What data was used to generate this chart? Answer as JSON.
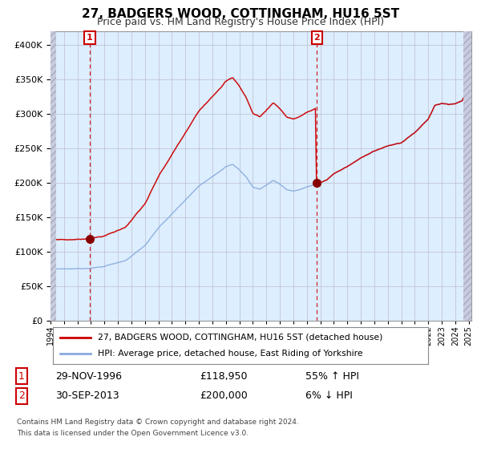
{
  "title": "27, BADGERS WOOD, COTTINGHAM, HU16 5ST",
  "subtitle": "Price paid vs. HM Land Registry's House Price Index (HPI)",
  "sale1_date": "29-NOV-1996",
  "sale1_price": 118950,
  "sale1_hpi": "55% ↑ HPI",
  "sale2_date": "30-SEP-2013",
  "sale2_price": 200000,
  "sale2_hpi": "6% ↓ HPI",
  "legend_line1": "27, BADGERS WOOD, COTTINGHAM, HU16 5ST (detached house)",
  "legend_line2": "HPI: Average price, detached house, East Riding of Yorkshire",
  "footer1": "Contains HM Land Registry data © Crown copyright and database right 2024.",
  "footer2": "This data is licensed under the Open Government Licence v3.0.",
  "red_color": "#cc0000",
  "blue_color": "#88aadd",
  "bg_color": "#ddeeff",
  "grid_color": "#bbbbcc",
  "ylim": [
    0,
    420000
  ],
  "yticks": [
    0,
    50000,
    100000,
    150000,
    200000,
    250000,
    300000,
    350000,
    400000
  ],
  "sale1_x": 1996.91,
  "sale2_x": 2013.75,
  "xlim_left": 1994.0,
  "xlim_right": 2025.2,
  "hatch_left_end": 1994.42,
  "hatch_right_start": 2024.58
}
